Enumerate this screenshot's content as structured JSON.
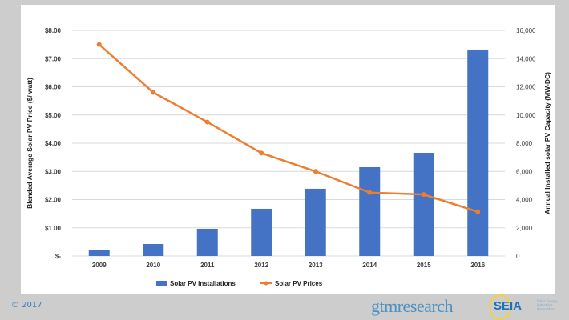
{
  "chart_data": {
    "type": "bar+line",
    "categories": [
      "2009",
      "2010",
      "2011",
      "2012",
      "2013",
      "2014",
      "2015",
      "2016"
    ],
    "series": [
      {
        "name": "Solar PV Installations",
        "type": "bar",
        "axis": "right",
        "color": "#4472c4",
        "values": [
          400,
          850,
          1930,
          3350,
          4770,
          6300,
          7320,
          14640
        ]
      },
      {
        "name": "Solar PV Prices",
        "type": "line",
        "axis": "left",
        "color": "#ed7d31",
        "values": [
          7.5,
          5.8,
          4.75,
          3.65,
          3.0,
          2.25,
          2.18,
          1.57
        ]
      }
    ],
    "ylabel_left": "Blended Average Solar PV Price ($/ watt)",
    "ylabel_right": "Annual Installed solar PV Capacity (MW-DC)",
    "ylim_left": [
      0,
      8
    ],
    "ylim_right": [
      0,
      16000
    ],
    "yticks_left": [
      "$-",
      "$1.00",
      "$2.00",
      "$3.00",
      "$4.00",
      "$5.00",
      "$6.00",
      "$7.00",
      "$8.00"
    ],
    "yticks_right": [
      "0",
      "2,000",
      "4,000",
      "6,000",
      "8,000",
      "10,000",
      "12,000",
      "14,000",
      "16,000"
    ],
    "grid": true,
    "legend": "bottom"
  },
  "footer": {
    "copyright": "© 2017",
    "logo_gtm": "gtmresearch",
    "logo_seia": "SEIA",
    "logo_seia_sub": "Solar Energy Industries Association"
  }
}
